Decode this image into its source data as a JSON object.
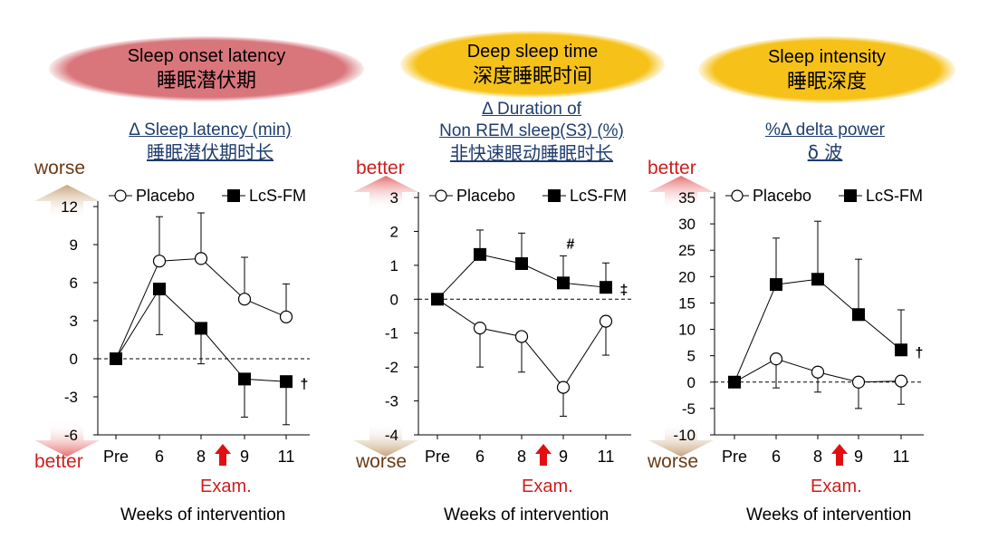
{
  "colors": {
    "cloud_red": "#d9767c",
    "cloud_yellow": "#f6c21a",
    "better_arrow": "#e88a8a",
    "worse_arrow": "#c8a880",
    "exam_arrow": "#e01010",
    "heading_blue": "#1f3d6e"
  },
  "common": {
    "exam_label": "Exam.",
    "x_title": "Weeks of intervention",
    "legend_placebo": "Placebo",
    "legend_lcs": "LcS-FM"
  },
  "chart_data": [
    {
      "type": "line",
      "title_en": "Sleep onset latency",
      "title_zh": "睡眠潜伏期",
      "ylabel_en": "Δ Sleep latency (min)",
      "ylabel_zh": "睡眠潜伏期时长",
      "top_direction": "worse",
      "bottom_direction": "better",
      "categories": [
        "Pre",
        "6",
        "8",
        "9",
        "11"
      ],
      "exam_between": [
        "8",
        "9"
      ],
      "ylim": [
        -6,
        12
      ],
      "yticks": [
        12,
        9,
        6,
        3,
        0,
        -3,
        -6
      ],
      "series": [
        {
          "name": "Placebo",
          "marker": "open-circle",
          "values": [
            0,
            7.7,
            7.9,
            4.7,
            3.3
          ],
          "err_up": [
            0,
            3.5,
            3.6,
            3.3,
            2.6
          ],
          "err_down": [
            0,
            0,
            0,
            0,
            0
          ]
        },
        {
          "name": "LcS-FM",
          "marker": "filled-square",
          "values": [
            0,
            5.5,
            2.4,
            -1.6,
            -1.8
          ],
          "err_up": [
            0,
            0,
            0,
            0,
            0
          ],
          "err_down": [
            0,
            3.6,
            2.8,
            3.0,
            3.4
          ]
        }
      ],
      "annotations": [
        {
          "text": "†",
          "series": "LcS-FM",
          "category": "11"
        }
      ]
    },
    {
      "type": "line",
      "title_en": "Deep sleep time",
      "title_zh": "深度睡眠时间",
      "ylabel_en_line1": "Δ Duration of",
      "ylabel_en_line2": "Non REM sleep(S3) (%)",
      "ylabel_zh": "非快速眼动睡眠时长",
      "top_direction": "better",
      "bottom_direction": "worse",
      "categories": [
        "Pre",
        "6",
        "8",
        "9",
        "11"
      ],
      "exam_between": [
        "8",
        "9"
      ],
      "ylim": [
        -4,
        3
      ],
      "yticks": [
        3,
        2,
        1,
        0,
        -1,
        -2,
        -3,
        -4
      ],
      "series": [
        {
          "name": "Placebo",
          "marker": "open-circle",
          "values": [
            0,
            -0.85,
            -1.1,
            -2.6,
            -0.65
          ],
          "err_up": [
            0,
            0,
            0,
            0,
            0
          ],
          "err_down": [
            0,
            1.15,
            1.05,
            0.85,
            1.0
          ]
        },
        {
          "name": "LcS-FM",
          "marker": "filled-square",
          "values": [
            0,
            1.32,
            1.05,
            0.48,
            0.35
          ],
          "err_up": [
            0,
            0.72,
            0.9,
            0.8,
            0.72
          ],
          "err_down": [
            0,
            0,
            0,
            0,
            0
          ]
        }
      ],
      "annotations": [
        {
          "text": "#",
          "series": "LcS-FM",
          "category": "9"
        },
        {
          "text": "‡",
          "series": "LcS-FM",
          "category": "11"
        }
      ]
    },
    {
      "type": "line",
      "title_en": "Sleep intensity",
      "title_zh": "睡眠深度",
      "ylabel_en": "%Δ delta power",
      "ylabel_zh": "δ 波",
      "top_direction": "better",
      "bottom_direction": "worse",
      "categories": [
        "Pre",
        "6",
        "8",
        "9",
        "11"
      ],
      "exam_between": [
        "8",
        "9"
      ],
      "ylim": [
        -10,
        35
      ],
      "yticks": [
        35,
        30,
        25,
        20,
        15,
        10,
        5,
        0,
        -5,
        -10
      ],
      "series": [
        {
          "name": "Placebo",
          "marker": "open-circle",
          "values": [
            0,
            4.4,
            1.9,
            0,
            0.2
          ],
          "err_up": [
            0,
            0,
            0,
            0,
            0
          ],
          "err_down": [
            0,
            5.5,
            3.8,
            5.0,
            4.4
          ]
        },
        {
          "name": "LcS-FM",
          "marker": "filled-square",
          "values": [
            0,
            18.5,
            19.5,
            12.8,
            6.1
          ],
          "err_up": [
            0,
            8.8,
            11.0,
            10.5,
            7.6
          ],
          "err_down": [
            0,
            0,
            0,
            0,
            0
          ]
        }
      ],
      "annotations": [
        {
          "text": "†",
          "series": "LcS-FM",
          "category": "11"
        }
      ]
    }
  ]
}
